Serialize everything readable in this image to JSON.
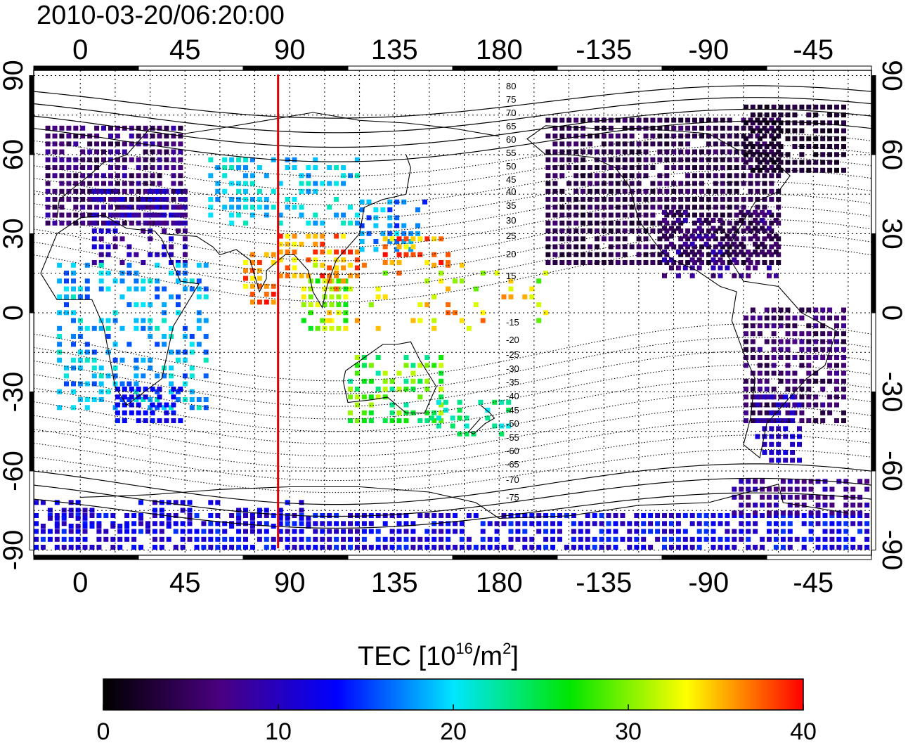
{
  "timestamp": "2010-03-20/06:20:00",
  "map": {
    "lon_ticks": [
      "0",
      "45",
      "90",
      "135",
      "180",
      "-135",
      "-90",
      "-45"
    ],
    "lon_tick_values": [
      0,
      45,
      90,
      135,
      180,
      225,
      270,
      315
    ],
    "lat_ticks": [
      "90",
      "60",
      "30",
      "0",
      "-30",
      "-60",
      "-90"
    ],
    "lat_tick_values": [
      90,
      60,
      30,
      0,
      -30,
      -60,
      -90
    ],
    "lon_range": [
      -20,
      340
    ],
    "lat_range": [
      -92,
      92
    ],
    "marker_longitude": 85,
    "marker_color": "#e00000"
  },
  "contours": {
    "labels": [
      "80",
      "75",
      "70",
      "65",
      "60",
      "55",
      "50",
      "45",
      "40",
      "35",
      "30",
      "25",
      "20",
      "15",
      "-15",
      "-20",
      "-25",
      "-30",
      "-35",
      "-40",
      "-45",
      "-50",
      "-55",
      "-60",
      "-65",
      "-70",
      "-75"
    ]
  },
  "colorbar": {
    "title_main": "TEC  [10",
    "title_exp1": "16",
    "title_mid": "/m",
    "title_exp2": "2",
    "title_end": "]",
    "tick_labels": [
      "0",
      "10",
      "20",
      "30",
      "40"
    ],
    "tick_values": [
      0,
      10,
      20,
      30,
      40
    ],
    "range": [
      0,
      40
    ],
    "stops": [
      "#000000",
      "#4a0080",
      "#0000ff",
      "#00e6ff",
      "#00e600",
      "#ffff00",
      "#ff0000"
    ]
  }
}
